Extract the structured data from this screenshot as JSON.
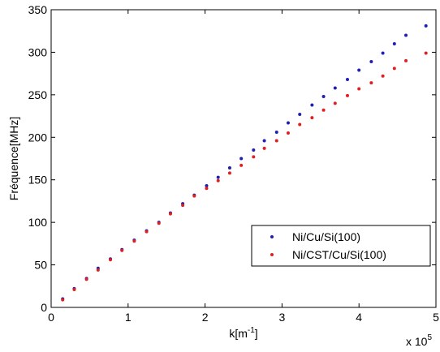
{
  "chart_data": {
    "type": "scatter",
    "title": "",
    "ylabel": "Fréquence[MHz]",
    "xlabel_main": "k[m",
    "xlabel_sup": "-1",
    "xlabel_close": "]",
    "x_multiplier_base": "x 10",
    "x_multiplier_exp": "5",
    "xlim": [
      0,
      5
    ],
    "ylim": [
      0,
      350
    ],
    "xticks": [
      0,
      1,
      2,
      3,
      4,
      5
    ],
    "yticks": [
      0,
      50,
      100,
      150,
      200,
      250,
      300,
      350
    ],
    "grid": false,
    "legend_position": "lower-right",
    "series": [
      {
        "name": "Ni/Cu/Si(100)",
        "color": "#1f1fb4",
        "points": [
          [
            0.15,
            10
          ],
          [
            0.3,
            22
          ],
          [
            0.46,
            34
          ],
          [
            0.61,
            46
          ],
          [
            0.77,
            57
          ],
          [
            0.92,
            68
          ],
          [
            1.08,
            79
          ],
          [
            1.24,
            90
          ],
          [
            1.4,
            100
          ],
          [
            1.55,
            111
          ],
          [
            1.71,
            122
          ],
          [
            1.86,
            132
          ],
          [
            2.02,
            143
          ],
          [
            2.17,
            153
          ],
          [
            2.32,
            164
          ],
          [
            2.47,
            175
          ],
          [
            2.63,
            185
          ],
          [
            2.77,
            196
          ],
          [
            2.93,
            206
          ],
          [
            3.08,
            217
          ],
          [
            3.23,
            227
          ],
          [
            3.39,
            238
          ],
          [
            3.54,
            248
          ],
          [
            3.69,
            258
          ],
          [
            3.85,
            268
          ],
          [
            4.0,
            279
          ],
          [
            4.16,
            289
          ],
          [
            4.31,
            299
          ],
          [
            4.46,
            310
          ],
          [
            4.61,
            320
          ],
          [
            4.87,
            331
          ]
        ]
      },
      {
        "name": "Ni/CST/Cu/Si(100)",
        "color": "#e02020",
        "points": [
          [
            0.15,
            9
          ],
          [
            0.3,
            21
          ],
          [
            0.46,
            33
          ],
          [
            0.61,
            44
          ],
          [
            0.77,
            56
          ],
          [
            0.92,
            67
          ],
          [
            1.08,
            78
          ],
          [
            1.24,
            89
          ],
          [
            1.4,
            99
          ],
          [
            1.55,
            110
          ],
          [
            1.71,
            120
          ],
          [
            1.86,
            131
          ],
          [
            2.02,
            140
          ],
          [
            2.17,
            149
          ],
          [
            2.32,
            158
          ],
          [
            2.47,
            167
          ],
          [
            2.63,
            177
          ],
          [
            2.77,
            187
          ],
          [
            2.93,
            196
          ],
          [
            3.08,
            205
          ],
          [
            3.23,
            215
          ],
          [
            3.39,
            223
          ],
          [
            3.54,
            232
          ],
          [
            3.69,
            240
          ],
          [
            3.85,
            249
          ],
          [
            4.0,
            257
          ],
          [
            4.16,
            264
          ],
          [
            4.31,
            272
          ],
          [
            4.46,
            281
          ],
          [
            4.61,
            290
          ],
          [
            4.87,
            299
          ]
        ]
      }
    ]
  }
}
